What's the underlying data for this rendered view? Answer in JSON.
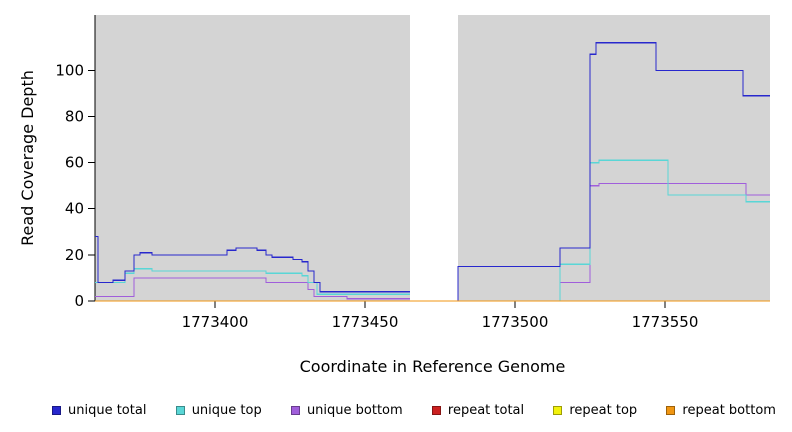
{
  "chart_data": {
    "type": "line",
    "subtype": "step",
    "title": "",
    "xlabel": "Coordinate in Reference Genome",
    "ylabel": "Read Coverage Depth",
    "xlim": [
      1773360,
      1773585
    ],
    "ylim": [
      0,
      124
    ],
    "x_ticks": [
      1773400,
      1773450,
      1773500,
      1773550
    ],
    "y_ticks": [
      0,
      20,
      40,
      60,
      80,
      100
    ],
    "grid": false,
    "legend_position": "bottom",
    "panel_color": "#d4d4d4",
    "axis_color": "#000000",
    "data_regions": [
      [
        1773360,
        1773465
      ],
      [
        1773481,
        1773585
      ]
    ],
    "gap_regions": [
      [
        1773465,
        1773481
      ]
    ],
    "draw_order": [
      3,
      4,
      2,
      1,
      0,
      5
    ],
    "series": [
      {
        "name": "unique total",
        "color": "#2727cd",
        "segments": [
          {
            "points": [
              [
                1773360,
                28
              ],
              [
                1773361,
                8
              ],
              [
                1773366,
                9
              ],
              [
                1773370,
                13
              ],
              [
                1773373,
                20
              ],
              [
                1773375,
                21
              ],
              [
                1773379,
                20
              ],
              [
                1773404,
                22
              ],
              [
                1773407,
                23
              ],
              [
                1773414,
                22
              ],
              [
                1773417,
                20
              ],
              [
                1773419,
                19
              ],
              [
                1773426,
                18
              ],
              [
                1773429,
                17
              ],
              [
                1773431,
                13
              ],
              [
                1773433,
                8
              ],
              [
                1773435,
                4
              ]
            ],
            "x_end": 1773465
          },
          {
            "points": [
              [
                1773481,
                0
              ],
              [
                1773481,
                15
              ],
              [
                1773515,
                23
              ],
              [
                1773525,
                107
              ],
              [
                1773527,
                112
              ],
              [
                1773547,
                100
              ],
              [
                1773576,
                89
              ]
            ],
            "x_end": 1773585
          }
        ]
      },
      {
        "name": "unique top",
        "color": "#59d6d6",
        "segments": [
          {
            "points": [
              [
                1773360,
                8
              ],
              [
                1773370,
                12
              ],
              [
                1773373,
                14
              ],
              [
                1773379,
                13
              ],
              [
                1773417,
                12
              ],
              [
                1773429,
                11
              ],
              [
                1773431,
                8
              ],
              [
                1773434,
                3
              ]
            ],
            "x_end": 1773465
          },
          {
            "points": [
              [
                1773481,
                0
              ],
              [
                1773515,
                16
              ],
              [
                1773525,
                60
              ],
              [
                1773528,
                61
              ],
              [
                1773551,
                46
              ],
              [
                1773577,
                43
              ]
            ],
            "x_end": 1773585
          }
        ]
      },
      {
        "name": "unique bottom",
        "color": "#a05edb",
        "segments": [
          {
            "points": [
              [
                1773360,
                2
              ],
              [
                1773373,
                10
              ],
              [
                1773417,
                8
              ],
              [
                1773431,
                5
              ],
              [
                1773433,
                2
              ],
              [
                1773444,
                1
              ]
            ],
            "x_end": 1773465
          },
          {
            "points": [
              [
                1773481,
                0
              ],
              [
                1773515,
                8
              ],
              [
                1773525,
                50
              ],
              [
                1773528,
                51
              ],
              [
                1773577,
                46
              ]
            ],
            "x_end": 1773585
          }
        ]
      },
      {
        "name": "repeat total",
        "color": "#cc2020",
        "segments": [
          {
            "points": [
              [
                1773360,
                0
              ]
            ],
            "x_end": 1773465
          },
          {
            "points": [
              [
                1773481,
                0
              ]
            ],
            "x_end": 1773585
          }
        ]
      },
      {
        "name": "repeat top",
        "color": "#f2f20c",
        "segments": [
          {
            "points": [
              [
                1773360,
                0
              ]
            ],
            "x_end": 1773465
          },
          {
            "points": [
              [
                1773481,
                0
              ]
            ],
            "x_end": 1773585
          }
        ]
      },
      {
        "name": "repeat bottom",
        "color": "#f09612",
        "segments": [
          {
            "points": [
              [
                1773360,
                0
              ]
            ],
            "x_end": 1773585
          }
        ]
      }
    ]
  }
}
